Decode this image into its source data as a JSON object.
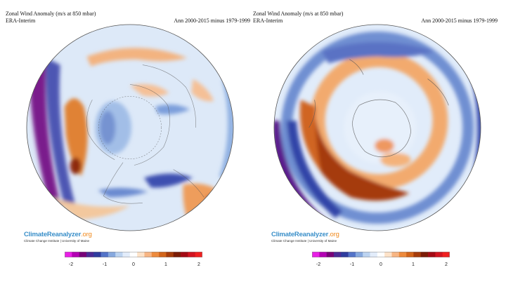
{
  "colorbar": {
    "colors": [
      "#e91ee6",
      "#b400b4",
      "#780078",
      "#4b2a96",
      "#2e3c9e",
      "#5373c8",
      "#86a8de",
      "#bcd3f0",
      "#e2ecfa",
      "#ffffff",
      "#fde2c8",
      "#f7b583",
      "#ed8a3c",
      "#d2651a",
      "#a63c0a",
      "#7b1c06",
      "#a30a14",
      "#d11420",
      "#f02020"
    ],
    "ticks": [
      "-2",
      "-1",
      "0",
      "1",
      "2"
    ]
  },
  "panels": [
    {
      "title": "Zonal Wind Anomaly (m/s at 850 mbar)",
      "source": "ERA-Interim",
      "period": "Ann 2000-2015 minus 1979-1999",
      "logo_main": "ClimateReanalyzer",
      "logo_suffix": ".org",
      "logo_institution": "Climate Change Institute | University of Maine"
    },
    {
      "title": "Zonal Wind Anomaly (m/s at 850 mbar)",
      "source": "ERA-Interim",
      "period": "Ann 2000-2015 minus 1979-1999",
      "logo_main": "ClimateReanalyzer",
      "logo_suffix": ".org",
      "logo_institution": "Climate Change Institute | University of Maine"
    }
  ]
}
